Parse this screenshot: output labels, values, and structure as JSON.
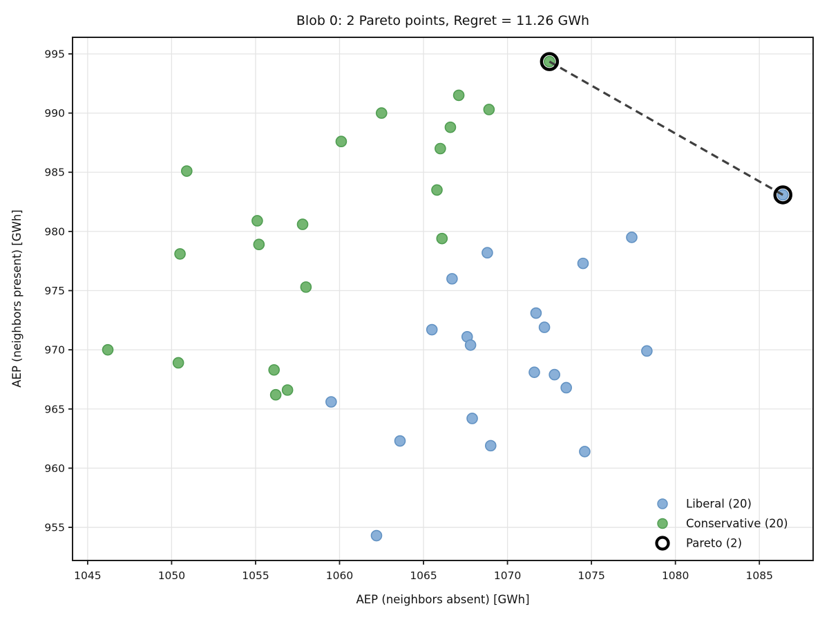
{
  "figure": {
    "background": "#ffffff"
  },
  "chart_data": {
    "type": "scatter",
    "title": "Blob 0: 2 Pareto points, Regret = 11.26 GWh",
    "xlabel": "AEP (neighbors absent) [GWh]",
    "ylabel": "AEP (neighbors present) [GWh]",
    "xlim": [
      1044.1,
      1088.2
    ],
    "ylim": [
      952.2,
      996.4
    ],
    "xticks": [
      1045,
      1050,
      1055,
      1060,
      1065,
      1070,
      1075,
      1080,
      1085
    ],
    "yticks": [
      955,
      960,
      965,
      970,
      975,
      980,
      985,
      990,
      995
    ],
    "grid": true,
    "grid_color": "#e4e4e4",
    "spine_color": "#1c1c1c",
    "legend_position": "lower right",
    "series": [
      {
        "name": "Liberal (20)",
        "marker": "circle",
        "fill": "#8ab0d8",
        "edge": "#6292c3",
        "points": [
          [
            1059.5,
            965.6
          ],
          [
            1062.2,
            954.3
          ],
          [
            1063.6,
            962.3
          ],
          [
            1065.5,
            971.7
          ],
          [
            1066.7,
            976.0
          ],
          [
            1067.6,
            971.1
          ],
          [
            1067.8,
            970.4
          ],
          [
            1067.9,
            964.2
          ],
          [
            1068.8,
            978.2
          ],
          [
            1069.0,
            961.9
          ],
          [
            1071.6,
            968.1
          ],
          [
            1071.7,
            973.1
          ],
          [
            1072.2,
            971.9
          ],
          [
            1072.8,
            967.9
          ],
          [
            1073.5,
            966.8
          ],
          [
            1074.5,
            977.3
          ],
          [
            1074.6,
            961.4
          ],
          [
            1077.4,
            979.5
          ],
          [
            1078.3,
            969.9
          ],
          [
            1086.4,
            983.09
          ]
        ]
      },
      {
        "name": "Conservative (20)",
        "marker": "circle",
        "fill": "#74b671",
        "edge": "#4f9d51",
        "points": [
          [
            1046.2,
            970.0
          ],
          [
            1050.4,
            968.9
          ],
          [
            1050.5,
            978.1
          ],
          [
            1050.9,
            985.1
          ],
          [
            1055.1,
            980.9
          ],
          [
            1055.2,
            978.9
          ],
          [
            1056.1,
            968.3
          ],
          [
            1056.2,
            966.2
          ],
          [
            1056.9,
            966.6
          ],
          [
            1057.8,
            980.6
          ],
          [
            1058.0,
            975.3
          ],
          [
            1060.1,
            987.6
          ],
          [
            1062.5,
            990.0
          ],
          [
            1065.8,
            983.5
          ],
          [
            1066.0,
            987.0
          ],
          [
            1066.1,
            979.4
          ],
          [
            1066.6,
            988.8
          ],
          [
            1067.1,
            991.5
          ],
          [
            1068.9,
            990.3
          ],
          [
            1072.5,
            994.35
          ]
        ]
      }
    ],
    "pareto": {
      "label": "Pareto (2)",
      "points": [
        [
          1072.5,
          994.35
        ],
        [
          1086.4,
          983.09
        ]
      ],
      "ring_color": "#000000",
      "line_color": "#3f3f3f",
      "line_style": "dashed",
      "regret_gwh": 11.26
    },
    "legend": {
      "entries": [
        "Liberal (20)",
        "Conservative (20)",
        "Pareto (2)"
      ]
    }
  }
}
